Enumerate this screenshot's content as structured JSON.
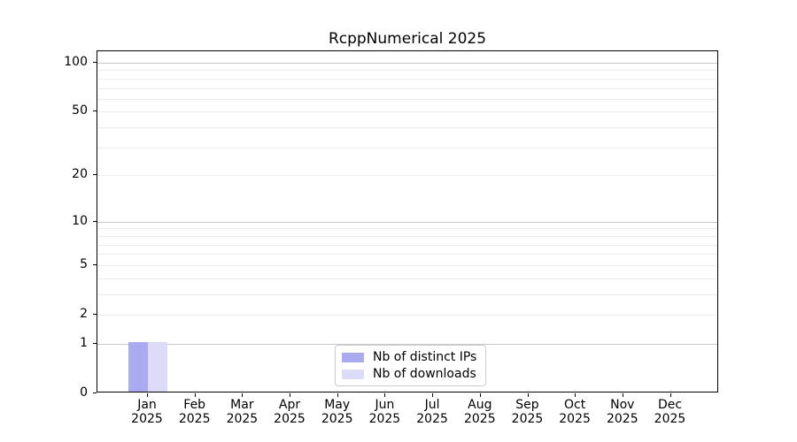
{
  "chart_data": {
    "type": "bar",
    "title": "RcppNumerical 2025",
    "categories": [
      "Jan",
      "Feb",
      "Mar",
      "Apr",
      "May",
      "Jun",
      "Jul",
      "Aug",
      "Sep",
      "Oct",
      "Nov",
      "Dec"
    ],
    "category_year": "2025",
    "series": [
      {
        "name": "Nb of distinct IPs",
        "color": "#aaaaf0",
        "values": [
          1,
          0,
          0,
          0,
          0,
          0,
          0,
          0,
          0,
          0,
          0,
          0
        ]
      },
      {
        "name": "Nb of downloads",
        "color": "#dcdcf8",
        "values": [
          1,
          0,
          0,
          0,
          0,
          0,
          0,
          0,
          0,
          0,
          0,
          0
        ]
      }
    ],
    "xlabel": "",
    "ylabel": "",
    "yscale": "log1p",
    "ylim": [
      0,
      117
    ],
    "yticks": [
      0,
      1,
      2,
      5,
      10,
      20,
      50,
      100
    ],
    "major_gridlines": [
      1,
      10,
      100
    ],
    "minor_gridlines": [
      2,
      3,
      4,
      5,
      6,
      7,
      8,
      9,
      20,
      30,
      40,
      50,
      60,
      70,
      80,
      90
    ],
    "grid": true,
    "legend_position": "lower center"
  },
  "colors": {
    "background": "#ffffff",
    "spine": "#000000",
    "major_grid": "#c6c6c6",
    "minor_grid": "#ebebeb",
    "text": "#000000",
    "legend_border": "#cccccc"
  }
}
